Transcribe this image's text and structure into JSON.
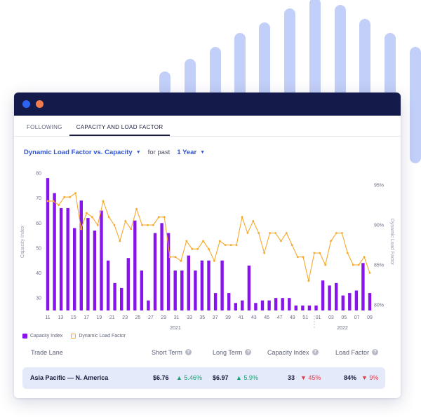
{
  "colors": {
    "purple": "#8714ea",
    "orange": "#f6a92d",
    "decoration": "#c2cff8",
    "titlebar": "#141a4a",
    "dot_blue": "#2e63f0",
    "dot_orange": "#f27b4c"
  },
  "tabs": [
    {
      "label": "FOLLOWING",
      "active": false
    },
    {
      "label": "CAPACITY AND LOAD FACTOR",
      "active": true
    }
  ],
  "controls": {
    "metric_label": "Dynamic Load Factor vs. Capacity",
    "for_past": "for past",
    "period_label": "1 Year"
  },
  "chart_data": {
    "type": "bar",
    "title": "",
    "ylabel_left": "Capacity Index",
    "ylabel_right": "Dynamic Load Factor",
    "left_ticks": [
      "80",
      "70",
      "60",
      "50",
      "40",
      "30"
    ],
    "right_ticks": [
      "95%",
      "90%",
      "85%",
      "80%"
    ],
    "ylim_left": [
      25,
      80
    ],
    "ylim_right": [
      79.3,
      96.5
    ],
    "x_tick_labels": [
      "11",
      "13",
      "15",
      "17",
      "19",
      "21",
      "23",
      "25",
      "27",
      "29",
      "31",
      "33",
      "35",
      "37",
      "39",
      "41",
      "43",
      "45",
      "47",
      "49",
      "51",
      "01",
      "03",
      "05",
      "07",
      "09"
    ],
    "year_labels": [
      "2021",
      "2022"
    ],
    "grid": false,
    "series": [
      {
        "name": "Capacity Index",
        "type": "bar",
        "values": [
          78,
          72,
          66,
          66,
          58,
          69,
          62,
          57,
          65,
          45,
          36,
          34,
          46,
          61,
          41,
          29,
          56,
          60,
          56,
          41,
          41,
          47,
          41,
          45,
          45,
          32,
          45,
          32,
          28,
          29,
          43,
          28,
          29,
          29,
          30,
          30,
          30,
          27,
          27,
          27,
          27,
          37,
          35,
          36,
          31,
          32,
          33,
          44,
          32
        ]
      },
      {
        "name": "Dynamic Load Factor",
        "type": "line",
        "values": [
          93,
          93,
          92.5,
          93.5,
          93.5,
          94,
          89.5,
          91.5,
          91,
          90,
          93,
          91,
          90,
          88,
          90.5,
          89.5,
          92,
          90,
          90,
          90,
          91,
          91,
          86,
          86,
          85.5,
          88,
          87,
          87,
          88,
          87,
          85.5,
          88,
          87.5,
          87.5,
          87.5,
          91,
          89,
          90.5,
          89,
          86.5,
          89,
          89,
          88,
          89,
          87.5,
          86,
          86,
          83,
          86.5,
          86.5,
          85,
          88,
          89,
          89,
          86.5,
          85,
          85,
          86,
          84
        ]
      }
    ]
  },
  "legend": [
    {
      "label": "Capacity Index"
    },
    {
      "label": "Dynamic Load Factor"
    }
  ],
  "table": {
    "headers": {
      "trade_lane": "Trade Lane",
      "short_term": "Short Term",
      "long_term": "Long Term",
      "capacity_index": "Capacity Index",
      "load_factor": "Load Factor"
    },
    "help_glyph": "?",
    "row": {
      "trade_lane": "Asia Pacific — N. America",
      "short_term": "$6.76",
      "short_term_change": "5.46%",
      "long_term": "$6.97",
      "long_term_change": "5.9%",
      "capacity_index": "33",
      "capacity_index_change": "45%",
      "load_factor": "84%",
      "load_factor_change": "9%"
    }
  }
}
